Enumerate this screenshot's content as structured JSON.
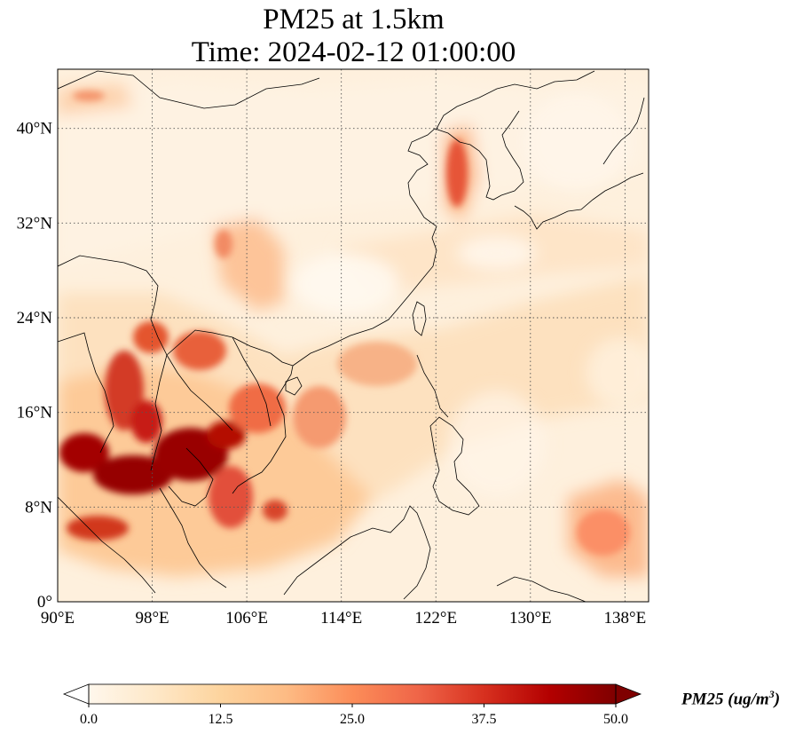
{
  "title": {
    "line1": "PM25 at 1.5km",
    "line2": "Time: 2024-02-12 01:00:00"
  },
  "map": {
    "variable": "PM25",
    "level": "1.5km",
    "time": "2024-02-12 01:00:00",
    "extent": {
      "lon_min": 90,
      "lon_max": 140,
      "lat_min": 0,
      "lat_max": 45
    },
    "gridlines": "dotted",
    "coastlines": true,
    "borders": true,
    "colormap": "OrRd",
    "lon_ticks": [
      90,
      98,
      106,
      114,
      122,
      130,
      138
    ],
    "lat_ticks": [
      0,
      8,
      16,
      24,
      32,
      40
    ],
    "lon_labels": [
      "90°E",
      "98°E",
      "106°E",
      "114°E",
      "122°E",
      "130°E",
      "138°E"
    ],
    "lat_labels": [
      "0°",
      "8°N",
      "16°N",
      "24°N",
      "32°N",
      "40°N"
    ]
  },
  "colorbar": {
    "label_main": "PM25 (ug/m",
    "label_sup": "3",
    "label_close": ")",
    "ticks": [
      0.0,
      12.5,
      25.0,
      37.5,
      50.0
    ],
    "tick_labels": [
      "0.0",
      "12.5",
      "25.0",
      "37.5",
      "50.0"
    ],
    "min": 0,
    "max": 50,
    "extend": "both",
    "colors": [
      "#fff7ec",
      "#fee8c8",
      "#fdd49e",
      "#fdbb84",
      "#fc8d59",
      "#ef6548",
      "#d7301f",
      "#b30000",
      "#7f0000"
    ]
  },
  "chart_data": {
    "type": "heatmap",
    "x": "longitude (°E)",
    "y": "latitude (°N)",
    "xlim": [
      90,
      140
    ],
    "ylim": [
      0,
      45
    ],
    "units": "ug/m3",
    "hotspots": [
      {
        "lon": 91.5,
        "lat": 12.5,
        "value": 50
      },
      {
        "lon": 95.5,
        "lat": 10.5,
        "value": 50
      },
      {
        "lon": 100.5,
        "lat": 12.5,
        "value": 48
      },
      {
        "lon": 103.0,
        "lat": 14.0,
        "value": 45
      },
      {
        "lon": 96.5,
        "lat": 17.5,
        "value": 40
      },
      {
        "lon": 101.5,
        "lat": 21.0,
        "value": 35
      },
      {
        "lon": 105.0,
        "lat": 8.5,
        "value": 32
      },
      {
        "lon": 124.5,
        "lat": 37.5,
        "value": 30
      },
      {
        "lon": 104.0,
        "lat": 30.5,
        "value": 25
      },
      {
        "lon": 136.0,
        "lat": 5.5,
        "value": 27
      },
      {
        "lon": 110.0,
        "lat": 13.0,
        "value": 22
      },
      {
        "lon": 92.0,
        "lat": 42.5,
        "value": 18
      }
    ]
  }
}
